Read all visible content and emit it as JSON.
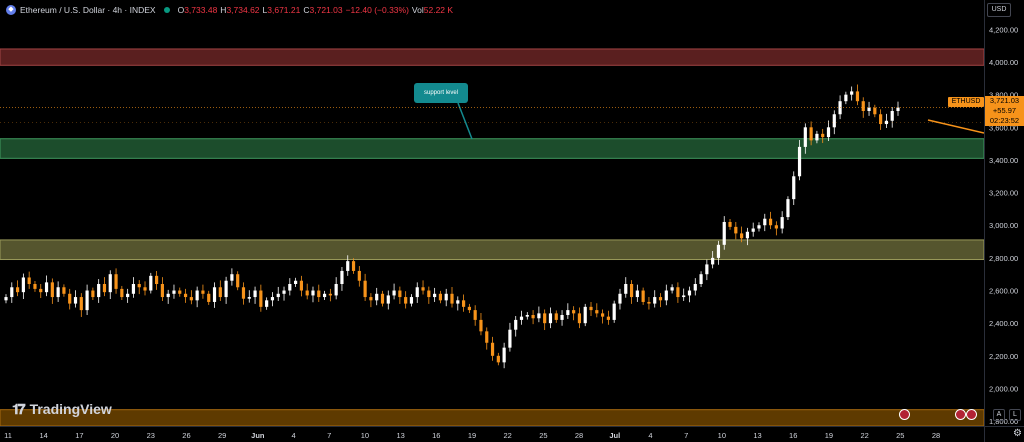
{
  "header": {
    "symbol": "Ethereum / U.S. Dollar · 4h · INDEX",
    "open_label": "O",
    "open": "3,733.48",
    "high_label": "H",
    "high": "3,734.62",
    "low_label": "L",
    "low": "3,671.21",
    "close_label": "C",
    "close": "3,721.03",
    "change": "−12.40 (−0.33%)",
    "vol_label": "Vol",
    "vol": "52.22 K"
  },
  "currency": "USD",
  "price_axis": [
    "4,200.00",
    "4,000.00",
    "3,800.00",
    "3,600.00",
    "3,400.00",
    "3,200.00",
    "3,000.00",
    "2,800.00",
    "2,600.00",
    "2,400.00",
    "2,200.00",
    "2,000.00",
    "1,800.00"
  ],
  "time_axis": [
    "11",
    "14",
    "17",
    "20",
    "23",
    "26",
    "29",
    "Jun",
    "4",
    "7",
    "10",
    "13",
    "16",
    "19",
    "22",
    "25",
    "28",
    "Jul",
    "4",
    "7",
    "10",
    "13",
    "16",
    "19",
    "22",
    "25",
    "28"
  ],
  "last_price": {
    "tag": "ETHUSD",
    "price": "3,721.03",
    "change": "+55.97",
    "countdown": "02:23:52"
  },
  "annotation": {
    "text": "support level"
  },
  "branding": {
    "name": "TradingView"
  },
  "log_button": "L",
  "auto_button": "A",
  "colors": {
    "up": "#ffffff",
    "down": "#f7931a",
    "accent": "#f7931a",
    "red_zone": "#6b2d2d",
    "green_zone": "#1f5a33",
    "olive_zone": "#6b6b3a",
    "brown_zone": "#7a4a00"
  },
  "chart_data": {
    "type": "candlestick",
    "title": "Ethereum / U.S. Dollar · 4h · INDEX",
    "ylim": [
      1770,
      4380
    ],
    "zones": [
      {
        "from": 3980,
        "to": 4080,
        "color": "red"
      },
      {
        "from": 3410,
        "to": 3530,
        "color": "green",
        "label": "support level"
      },
      {
        "from": 2790,
        "to": 2910,
        "color": "olive"
      },
      {
        "from": 1770,
        "to": 1870,
        "color": "brown"
      }
    ],
    "close_series": [
      2560,
      2620,
      2590,
      2680,
      2640,
      2610,
      2590,
      2650,
      2560,
      2620,
      2580,
      2520,
      2560,
      2480,
      2600,
      2560,
      2640,
      2590,
      2700,
      2610,
      2560,
      2580,
      2640,
      2620,
      2600,
      2690,
      2640,
      2560,
      2580,
      2600,
      2580,
      2560,
      2540,
      2600,
      2580,
      2530,
      2620,
      2560,
      2660,
      2700,
      2620,
      2550,
      2560,
      2600,
      2500,
      2540,
      2560,
      2580,
      2600,
      2640,
      2660,
      2600,
      2570,
      2600,
      2560,
      2580,
      2570,
      2640,
      2720,
      2780,
      2720,
      2660,
      2560,
      2540,
      2580,
      2520,
      2570,
      2600,
      2560,
      2520,
      2560,
      2620,
      2600,
      2560,
      2580,
      2540,
      2580,
      2520,
      2540,
      2500,
      2480,
      2420,
      2350,
      2280,
      2200,
      2160,
      2250,
      2360,
      2420,
      2440,
      2450,
      2430,
      2460,
      2400,
      2460,
      2420,
      2450,
      2480,
      2460,
      2400,
      2500,
      2480,
      2460,
      2440,
      2420,
      2520,
      2580,
      2640,
      2560,
      2600,
      2530,
      2520,
      2560,
      2540,
      2600,
      2620,
      2560,
      2570,
      2600,
      2640,
      2700,
      2760,
      2800,
      2880,
      3020,
      2990,
      2950,
      2920,
      2960,
      2980,
      3000,
      3040,
      3000,
      2980,
      3050,
      3160,
      3300,
      3480,
      3600,
      3520,
      3560,
      3540,
      3600,
      3680,
      3760,
      3800,
      3820,
      3760,
      3700,
      3720,
      3680,
      3620,
      3640,
      3700,
      3721
    ]
  }
}
